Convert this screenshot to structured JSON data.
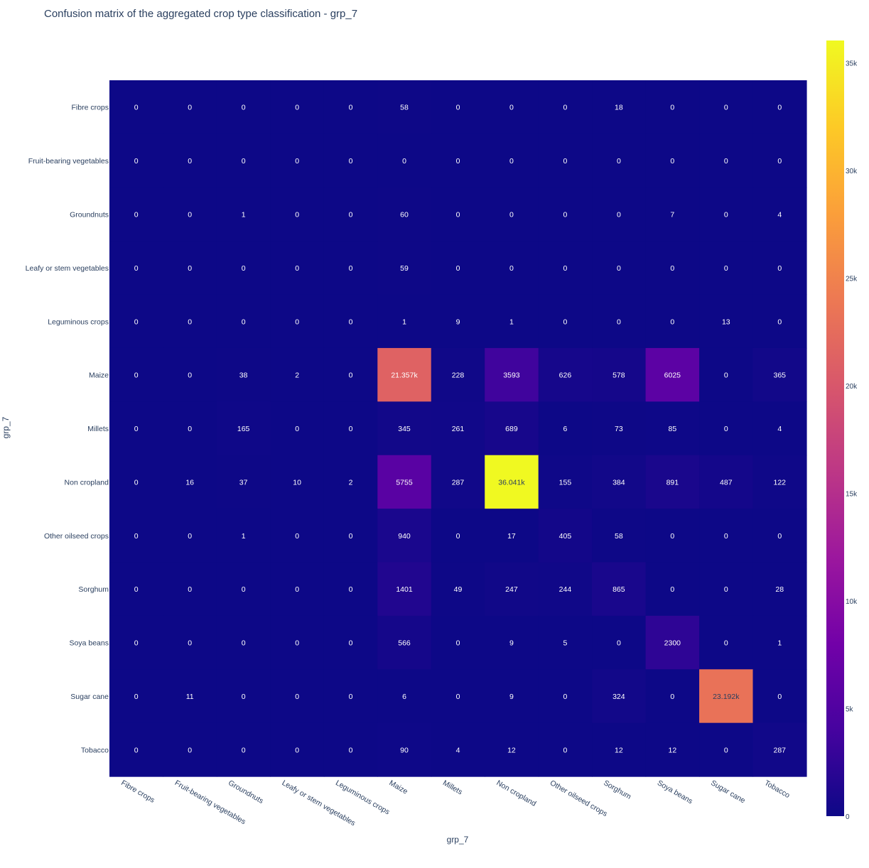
{
  "chart_data": {
    "type": "heatmap",
    "title": "Confusion matrix of the aggregated crop type classification - grp_7",
    "xlabel": "grp_7",
    "ylabel": "grp_7",
    "x": [
      "Fibre crops",
      "Fruit-bearing vegetables",
      "Groundnuts",
      "Leafy or stem vegetables",
      "Leguminous crops",
      "Maize",
      "Millets",
      "Non cropland",
      "Other oilseed crops",
      "Sorghum",
      "Soya beans",
      "Sugar cane",
      "Tobacco"
    ],
    "y": [
      "Fibre crops",
      "Fruit-bearing vegetables",
      "Groundnuts",
      "Leafy or stem vegetables",
      "Leguminous crops",
      "Maize",
      "Millets",
      "Non cropland",
      "Other oilseed crops",
      "Sorghum",
      "Soya beans",
      "Sugar cane",
      "Tobacco"
    ],
    "z": [
      [
        0,
        0,
        0,
        0,
        0,
        58,
        0,
        0,
        0,
        18,
        0,
        0,
        0
      ],
      [
        0,
        0,
        0,
        0,
        0,
        0,
        0,
        0,
        0,
        0,
        0,
        0,
        0
      ],
      [
        0,
        0,
        1,
        0,
        0,
        60,
        0,
        0,
        0,
        0,
        7,
        0,
        4
      ],
      [
        0,
        0,
        0,
        0,
        0,
        59,
        0,
        0,
        0,
        0,
        0,
        0,
        0
      ],
      [
        0,
        0,
        0,
        0,
        0,
        1,
        9,
        1,
        0,
        0,
        0,
        13,
        0
      ],
      [
        0,
        0,
        38,
        2,
        0,
        21357,
        228,
        3593,
        626,
        578,
        6025,
        0,
        365
      ],
      [
        0,
        0,
        165,
        0,
        0,
        345,
        261,
        689,
        6,
        73,
        85,
        0,
        4
      ],
      [
        0,
        16,
        37,
        10,
        2,
        5755,
        287,
        36041,
        155,
        384,
        891,
        487,
        122
      ],
      [
        0,
        0,
        1,
        0,
        0,
        940,
        0,
        17,
        405,
        58,
        0,
        0,
        0
      ],
      [
        0,
        0,
        0,
        0,
        0,
        1401,
        49,
        247,
        244,
        865,
        0,
        0,
        28
      ],
      [
        0,
        0,
        0,
        0,
        0,
        566,
        0,
        9,
        5,
        0,
        2300,
        0,
        1
      ],
      [
        0,
        11,
        0,
        0,
        0,
        6,
        0,
        9,
        0,
        324,
        0,
        23192,
        0
      ],
      [
        0,
        0,
        0,
        0,
        0,
        90,
        4,
        12,
        0,
        12,
        12,
        0,
        287
      ]
    ],
    "text": [
      [
        "0",
        "0",
        "0",
        "0",
        "0",
        "58",
        "0",
        "0",
        "0",
        "18",
        "0",
        "0",
        "0"
      ],
      [
        "0",
        "0",
        "0",
        "0",
        "0",
        "0",
        "0",
        "0",
        "0",
        "0",
        "0",
        "0",
        "0"
      ],
      [
        "0",
        "0",
        "1",
        "0",
        "0",
        "60",
        "0",
        "0",
        "0",
        "0",
        "7",
        "0",
        "4"
      ],
      [
        "0",
        "0",
        "0",
        "0",
        "0",
        "59",
        "0",
        "0",
        "0",
        "0",
        "0",
        "0",
        "0"
      ],
      [
        "0",
        "0",
        "0",
        "0",
        "0",
        "1",
        "9",
        "1",
        "0",
        "0",
        "0",
        "13",
        "0"
      ],
      [
        "0",
        "0",
        "38",
        "2",
        "0",
        "21.357k",
        "228",
        "3593",
        "626",
        "578",
        "6025",
        "0",
        "365"
      ],
      [
        "0",
        "0",
        "165",
        "0",
        "0",
        "345",
        "261",
        "689",
        "6",
        "73",
        "85",
        "0",
        "4"
      ],
      [
        "0",
        "16",
        "37",
        "10",
        "2",
        "5755",
        "287",
        "36.041k",
        "155",
        "384",
        "891",
        "487",
        "122"
      ],
      [
        "0",
        "0",
        "1",
        "0",
        "0",
        "940",
        "0",
        "17",
        "405",
        "58",
        "0",
        "0",
        "0"
      ],
      [
        "0",
        "0",
        "0",
        "0",
        "0",
        "1401",
        "49",
        "247",
        "244",
        "865",
        "0",
        "0",
        "28"
      ],
      [
        "0",
        "0",
        "0",
        "0",
        "0",
        "566",
        "0",
        "9",
        "5",
        "0",
        "2300",
        "0",
        "1"
      ],
      [
        "0",
        "11",
        "0",
        "0",
        "0",
        "6",
        "0",
        "9",
        "0",
        "324",
        "0",
        "23.192k",
        "0"
      ],
      [
        "0",
        "0",
        "0",
        "0",
        "0",
        "90",
        "4",
        "12",
        "0",
        "12",
        "12",
        "0",
        "287"
      ]
    ],
    "zlim": [
      0,
      36041
    ],
    "colorscale": "plasma",
    "colorbar": {
      "tickvals": [
        0,
        5000,
        10000,
        15000,
        20000,
        25000,
        30000,
        35000
      ],
      "ticktext": [
        "0",
        "5k",
        "10k",
        "15k",
        "20k",
        "25k",
        "30k",
        "35k"
      ]
    },
    "grid": false,
    "legend": "none"
  }
}
